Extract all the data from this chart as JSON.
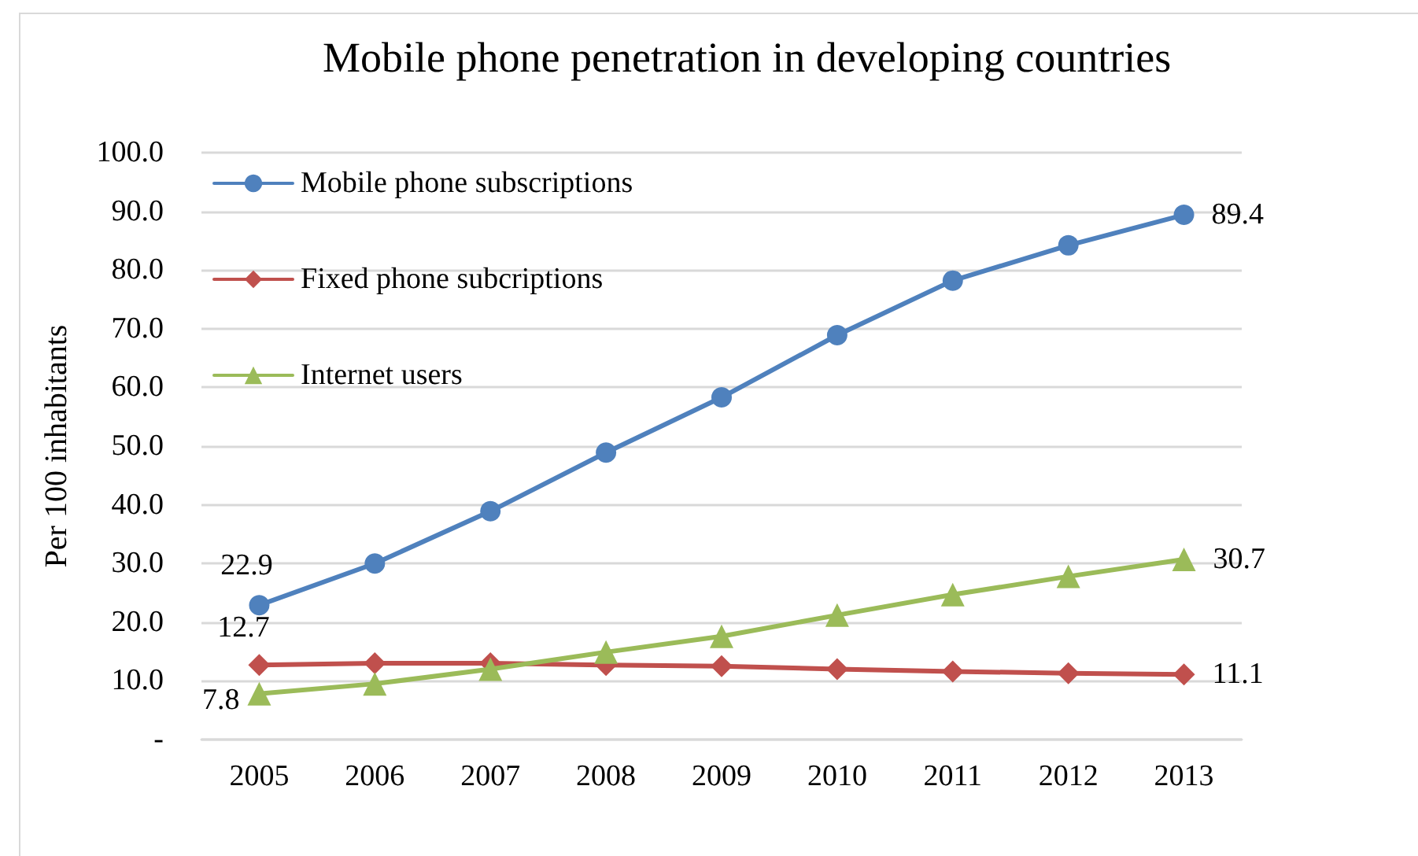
{
  "chart_data": {
    "type": "line",
    "title": "Mobile phone penetration in developing countries",
    "ylabel": "Per 100 inhabitants",
    "categories": [
      "2005",
      "2006",
      "2007",
      "2008",
      "2009",
      "2010",
      "2011",
      "2012",
      "2013"
    ],
    "ylim": [
      0,
      100
    ],
    "yticks": [
      {
        "value": 0,
        "label": "-"
      },
      {
        "value": 10,
        "label": "10.0"
      },
      {
        "value": 20,
        "label": "20.0"
      },
      {
        "value": 30,
        "label": "30.0"
      },
      {
        "value": 40,
        "label": "40.0"
      },
      {
        "value": 50,
        "label": "50.0"
      },
      {
        "value": 60,
        "label": "60.0"
      },
      {
        "value": 70,
        "label": "70.0"
      },
      {
        "value": 80,
        "label": "80.0"
      },
      {
        "value": 90,
        "label": "90.0"
      },
      {
        "value": 100,
        "label": "100.0"
      }
    ],
    "grid": "y",
    "legend": "top left",
    "line_style": "solid",
    "series": [
      {
        "name": "Mobile phone subscriptions",
        "color": "#4f81bd",
        "marker": "circle",
        "values": [
          22.9,
          30.0,
          38.9,
          48.9,
          58.3,
          68.9,
          78.2,
          84.2,
          89.4
        ],
        "value_labels": [
          "22.9",
          null,
          null,
          null,
          null,
          null,
          null,
          null,
          "89.4"
        ]
      },
      {
        "name": "Fixed phone subcriptions",
        "color": "#c0504d",
        "marker": "diamond",
        "values": [
          12.7,
          13.0,
          13.0,
          12.7,
          12.5,
          12.0,
          11.6,
          11.3,
          11.1
        ],
        "value_labels": [
          "12.7",
          null,
          null,
          null,
          null,
          null,
          null,
          null,
          "11.1"
        ]
      },
      {
        "name": "Internet users",
        "color": "#9bbb59",
        "marker": "triangle",
        "values": [
          7.8,
          9.5,
          12.0,
          14.9,
          17.6,
          21.2,
          24.7,
          27.8,
          30.7
        ],
        "value_labels": [
          "7.8",
          null,
          null,
          null,
          null,
          null,
          null,
          null,
          "30.7"
        ]
      }
    ]
  }
}
